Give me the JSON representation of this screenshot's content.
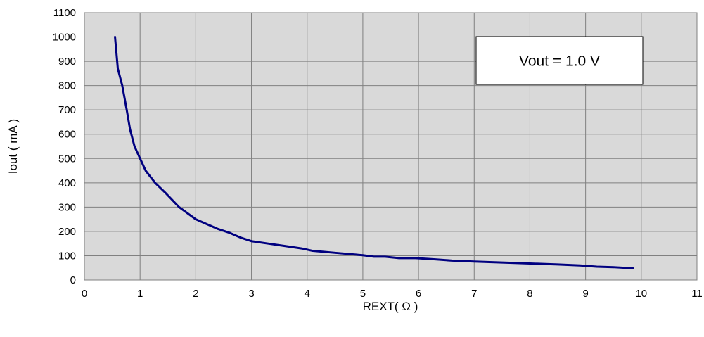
{
  "chart_data": {
    "type": "line",
    "title": "",
    "xlabel": "REXT( Ω )",
    "ylabel": "Iout ( mA )",
    "xlim": [
      0,
      11
    ],
    "ylim": [
      0,
      1100
    ],
    "xticks": [
      0,
      1,
      2,
      3,
      4,
      5,
      6,
      7,
      8,
      9,
      10,
      11
    ],
    "yticks": [
      0,
      100,
      200,
      300,
      400,
      500,
      600,
      700,
      800,
      900,
      1000,
      1100
    ],
    "grid": true,
    "legend": "none",
    "annotation": "Vout = 1.0 V",
    "colors": {
      "line": "#000080",
      "plot_bg": "#d9d9d9",
      "grid": "#808080"
    },
    "series": [
      {
        "x": [
          0.55,
          0.6,
          0.68,
          0.76,
          0.82,
          0.9,
          1.0,
          1.1,
          1.27,
          1.45,
          1.7,
          2.0,
          2.4,
          2.6,
          2.8,
          3.0,
          3.3,
          3.6,
          3.9,
          4.1,
          4.5,
          5.0,
          5.2,
          5.4,
          5.65,
          5.95,
          6.3,
          6.6,
          7.0,
          7.5,
          8.0,
          8.5,
          8.9,
          9.2,
          9.5,
          9.85
        ],
        "y": [
          1000,
          870,
          800,
          700,
          620,
          550,
          500,
          450,
          400,
          360,
          300,
          250,
          210,
          195,
          175,
          160,
          150,
          140,
          130,
          120,
          112,
          102,
          96,
          96,
          90,
          90,
          85,
          80,
          76,
          72,
          68,
          64,
          60,
          55,
          53,
          48
        ]
      }
    ]
  }
}
